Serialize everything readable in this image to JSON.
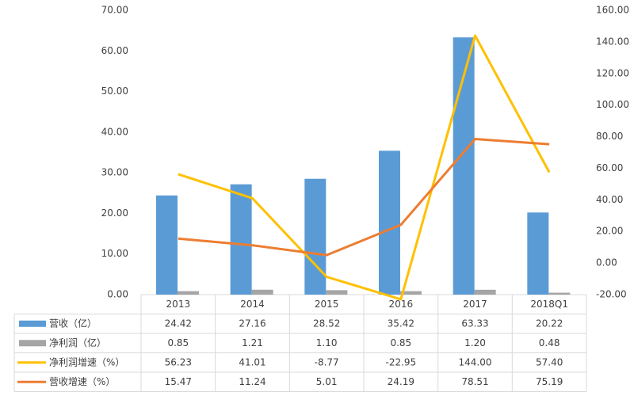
{
  "chart_data": {
    "type": "bar",
    "categories": [
      "2013",
      "2014",
      "2015",
      "2016",
      "2017",
      "2018Q1"
    ],
    "ylim": [
      0,
      70
    ],
    "yticks": [
      {
        "value": 0,
        "label": "0.00"
      },
      {
        "value": 10,
        "label": "10.00"
      },
      {
        "value": 20,
        "label": "20.00"
      },
      {
        "value": 30,
        "label": "30.00"
      },
      {
        "value": 40,
        "label": "40.00"
      },
      {
        "value": 50,
        "label": "50.00"
      },
      {
        "value": 60,
        "label": "60.00"
      },
      {
        "value": 70,
        "label": "70.00"
      }
    ],
    "y2lim": [
      -20,
      160
    ],
    "y2ticks": [
      {
        "value": -20,
        "label": "-20.00"
      },
      {
        "value": 0,
        "label": "0.00"
      },
      {
        "value": 20,
        "label": "20.00"
      },
      {
        "value": 40,
        "label": "40.00"
      },
      {
        "value": 60,
        "label": "60.00"
      },
      {
        "value": 80,
        "label": "80.00"
      },
      {
        "value": 100,
        "label": "100.00"
      },
      {
        "value": 120,
        "label": "120.00"
      },
      {
        "value": 140,
        "label": "140.00"
      },
      {
        "value": 160,
        "label": "160.00"
      }
    ],
    "grid": false,
    "series": [
      {
        "name": "营收（亿）",
        "type": "bar",
        "color": "#5b9bd5",
        "values": [
          24.42,
          27.16,
          28.52,
          35.42,
          63.33,
          20.22
        ],
        "value_labels": [
          "24.42",
          "27.16",
          "28.52",
          "35.42",
          "63.33",
          "20.22"
        ]
      },
      {
        "name": "净利润（亿）",
        "type": "bar",
        "color": "#a5a5a5",
        "values": [
          0.85,
          1.21,
          1.1,
          0.85,
          1.2,
          0.48
        ],
        "value_labels": [
          "0.85",
          "1.21",
          "1.10",
          "0.85",
          "1.20",
          "0.48"
        ]
      },
      {
        "name": "净利润增速（%）",
        "type": "line",
        "axis": "y2",
        "color": "#ffc000",
        "values": [
          56.23,
          41.01,
          -8.77,
          -22.95,
          144,
          57.4
        ],
        "value_labels": [
          "56.23",
          "41.01",
          "-8.77",
          "-22.95",
          "144.00",
          "57.40"
        ]
      },
      {
        "name": "营收增速（%）",
        "type": "line",
        "axis": "y2",
        "color": "#ed7d31",
        "values": [
          15.47,
          11.24,
          5.01,
          24.19,
          78.51,
          75.19
        ],
        "value_labels": [
          "15.47",
          "11.24",
          "5.01",
          "24.19",
          "78.51",
          "75.19"
        ]
      }
    ]
  }
}
